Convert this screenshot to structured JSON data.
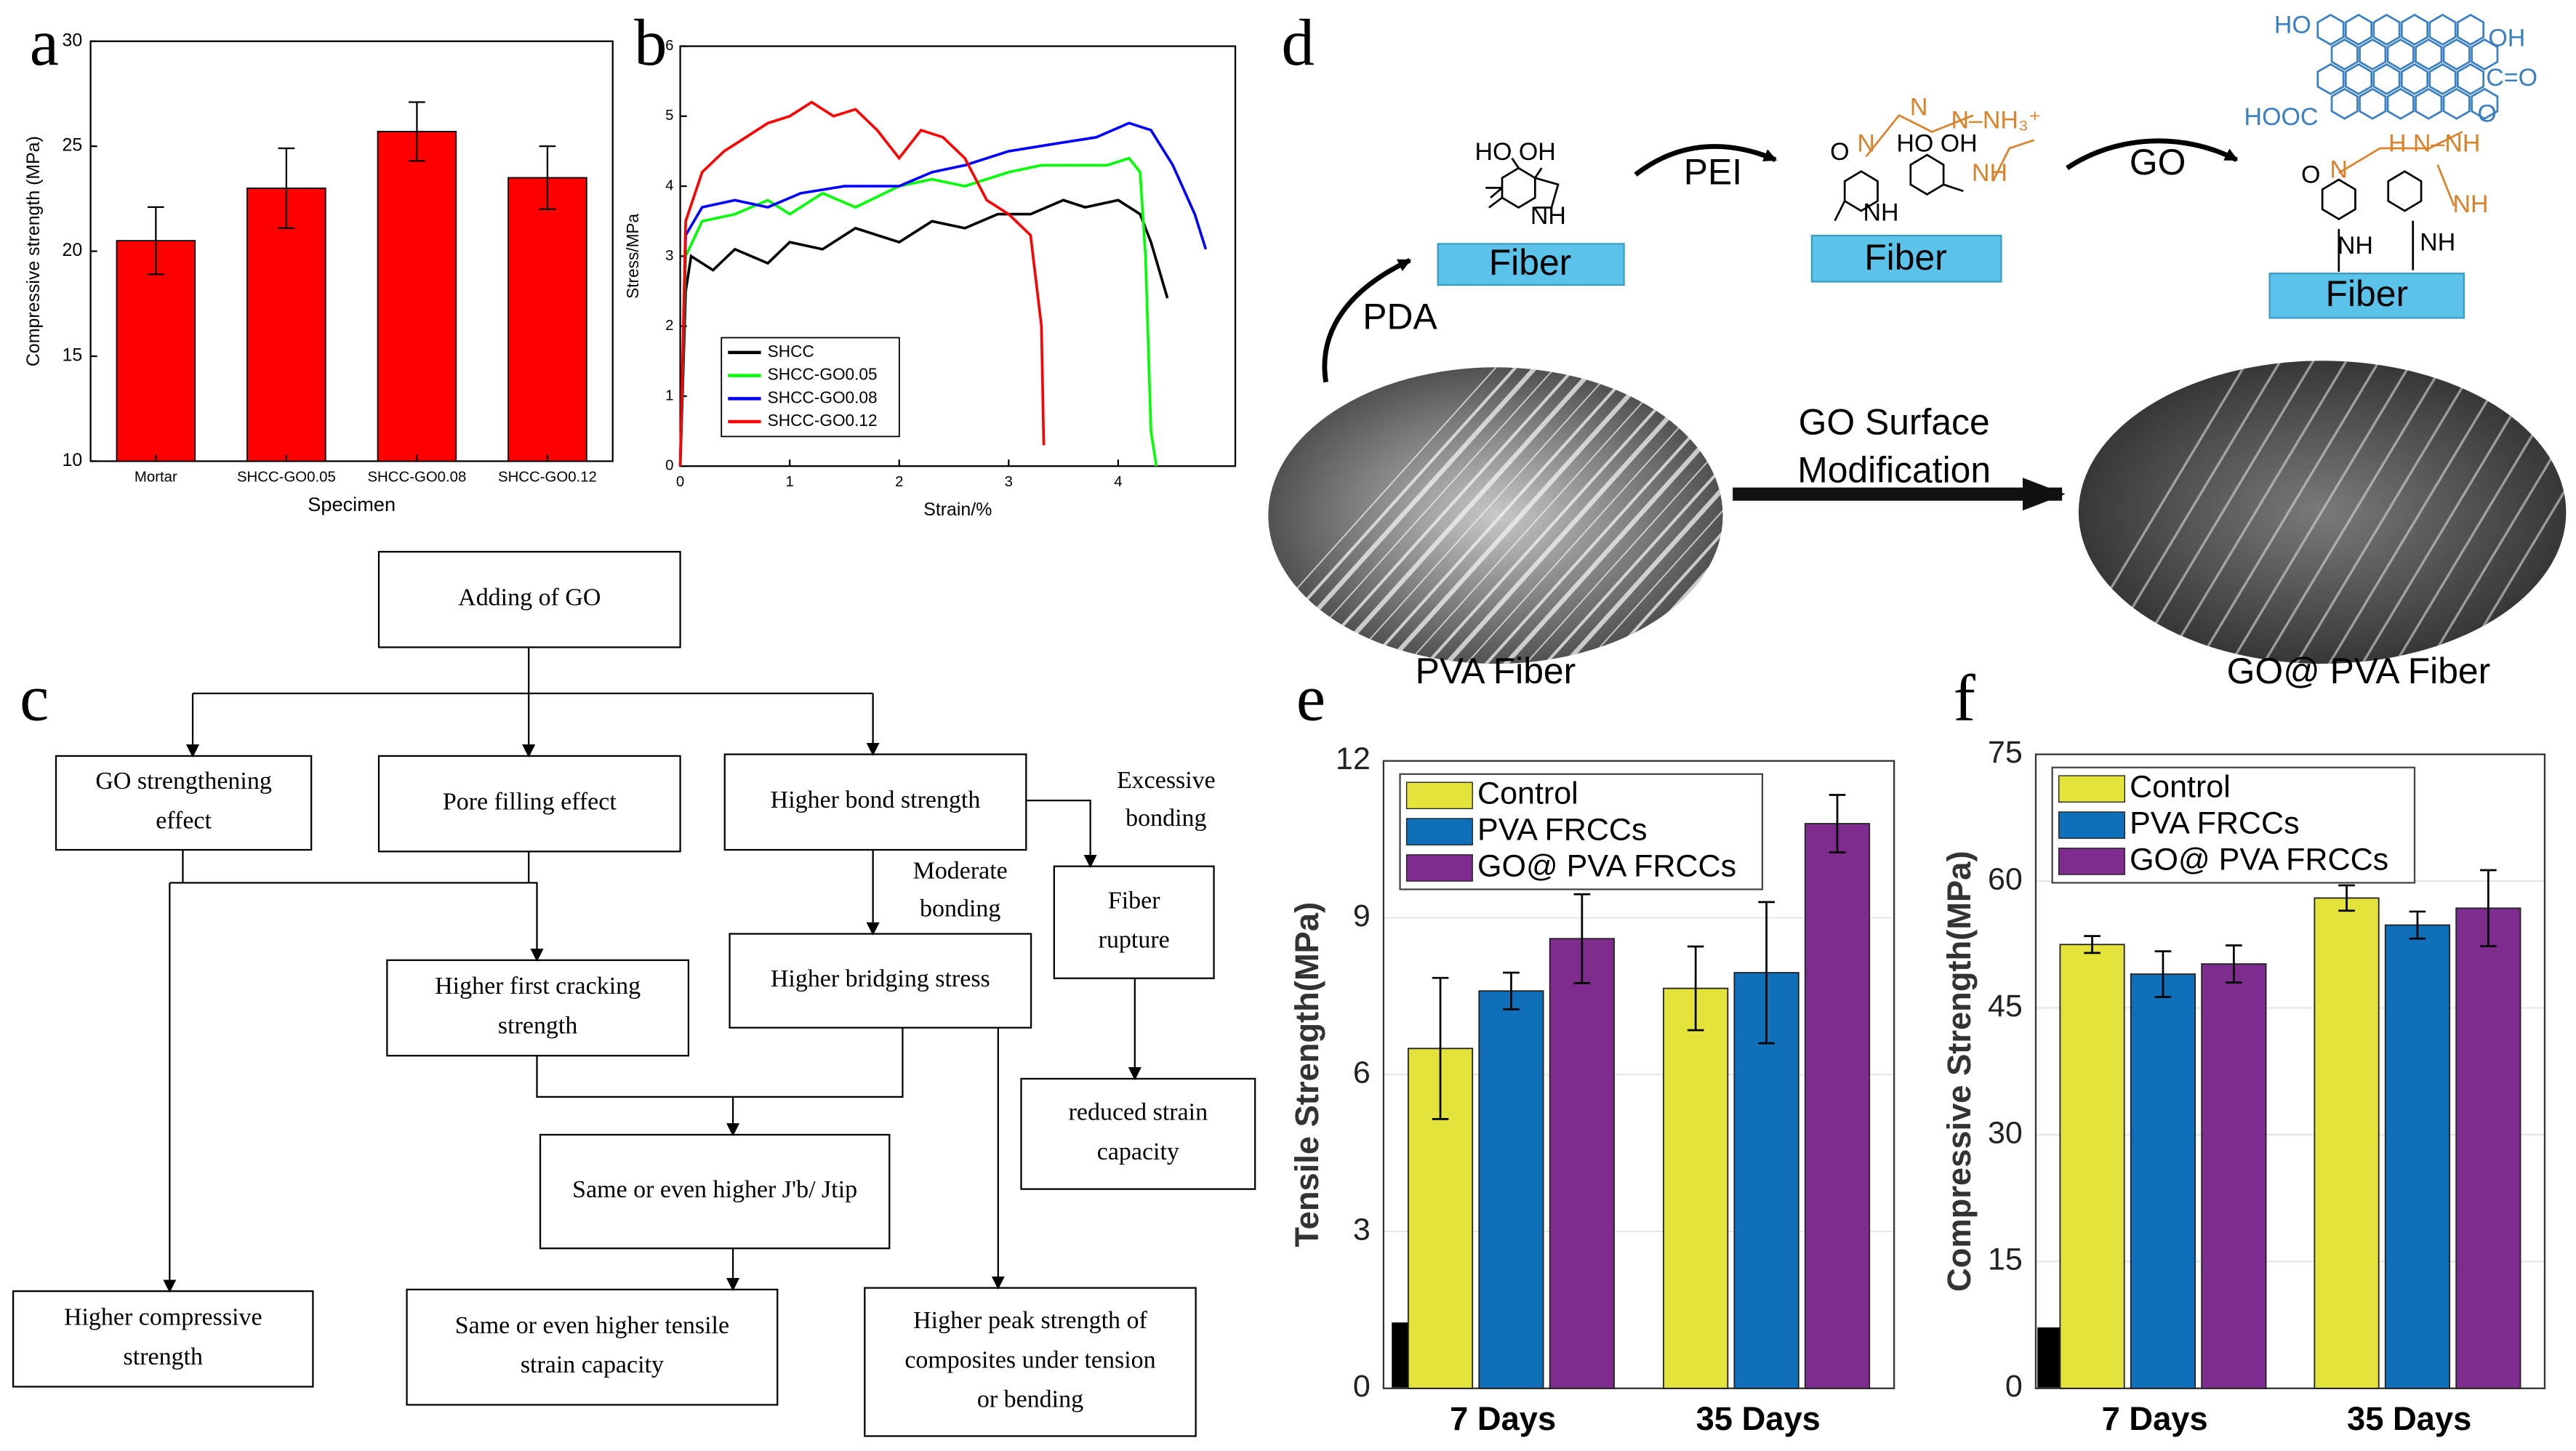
{
  "chart_data": [
    {
      "type": "bar",
      "panel_label": "a",
      "categories": [
        "Mortar",
        "SHCC-GO0.05",
        "SHCC-GO0.08",
        "SHCC-GO0.12"
      ],
      "values": [
        20.5,
        23,
        25.7,
        23.5
      ],
      "errors": [
        1.6,
        1.9,
        1.4,
        1.5
      ],
      "color": "#ff0000",
      "xlabel": "Specimen",
      "ylabel": "Compressive strength (MPa)",
      "ylim": [
        10,
        30
      ],
      "yticks": [
        10,
        15,
        20,
        25,
        30
      ]
    },
    {
      "type": "line",
      "panel_label": "b",
      "xlabel": "Strain/%",
      "ylabel": "Stress/MPa",
      "xlim": [
        0,
        5.07
      ],
      "xticks": [
        0,
        1,
        2,
        3,
        4
      ],
      "ylim": [
        0,
        6
      ],
      "yticks": [
        0,
        1,
        2,
        3,
        4,
        5,
        6
      ],
      "series": [
        {
          "name": "SHCC",
          "color": "#000000",
          "x": [
            0,
            0.05,
            0.1,
            0.3,
            0.5,
            0.8,
            1.0,
            1.3,
            1.6,
            2.0,
            2.3,
            2.6,
            2.9,
            3.2,
            3.5,
            3.7,
            4.0,
            4.2,
            4.3,
            4.45
          ],
          "values": [
            0,
            2.5,
            3.0,
            2.8,
            3.1,
            2.9,
            3.2,
            3.1,
            3.4,
            3.2,
            3.5,
            3.4,
            3.6,
            3.6,
            3.8,
            3.7,
            3.8,
            3.6,
            3.2,
            2.4
          ]
        },
        {
          "name": "SHCC-GO0.05",
          "color": "#00ff00",
          "x": [
            0,
            0.05,
            0.2,
            0.5,
            0.8,
            1.0,
            1.3,
            1.6,
            2.0,
            2.3,
            2.6,
            3.0,
            3.3,
            3.6,
            3.9,
            4.1,
            4.2,
            4.25,
            4.3,
            4.35
          ],
          "values": [
            0,
            3.0,
            3.5,
            3.6,
            3.8,
            3.6,
            3.9,
            3.7,
            4.0,
            4.1,
            4.0,
            4.2,
            4.3,
            4.3,
            4.3,
            4.4,
            4.2,
            3.0,
            0.5,
            0
          ]
        },
        {
          "name": "SHCC-GO0.08",
          "color": "#0000ff",
          "x": [
            0,
            0.05,
            0.2,
            0.5,
            0.8,
            1.1,
            1.5,
            2.0,
            2.3,
            2.6,
            3.0,
            3.4,
            3.8,
            4.1,
            4.3,
            4.5,
            4.7,
            4.8
          ],
          "values": [
            0,
            3.3,
            3.7,
            3.8,
            3.7,
            3.9,
            4.0,
            4.0,
            4.2,
            4.3,
            4.5,
            4.6,
            4.7,
            4.9,
            4.8,
            4.3,
            3.6,
            3.1
          ]
        },
        {
          "name": "SHCC-GO0.12",
          "color": "#ff0000",
          "x": [
            0,
            0.05,
            0.2,
            0.4,
            0.6,
            0.8,
            1.0,
            1.2,
            1.4,
            1.6,
            1.8,
            2.0,
            2.2,
            2.4,
            2.6,
            2.8,
            3.0,
            3.2,
            3.3,
            3.32
          ],
          "values": [
            0,
            3.5,
            4.2,
            4.5,
            4.7,
            4.9,
            5.0,
            5.2,
            5.0,
            5.1,
            4.8,
            4.4,
            4.8,
            4.7,
            4.4,
            3.8,
            3.6,
            3.3,
            2.0,
            0.3
          ]
        }
      ]
    },
    {
      "type": "grouped_bar",
      "panel_label": "e",
      "categories": [
        "7 Days",
        "35 Days"
      ],
      "ylabel": "Tensile Strength(MPa)",
      "ylim": [
        0,
        12
      ],
      "yticks": [
        0,
        3,
        6,
        9,
        12
      ],
      "grid": true,
      "series": [
        {
          "name": "Control",
          "color": "#e3e33c",
          "values": [
            6.5,
            7.65
          ],
          "errors": [
            1.35,
            0.8
          ]
        },
        {
          "name": "PVA FRCCs",
          "color": "#0f6fb8",
          "values": [
            7.6,
            7.95
          ],
          "errors": [
            0.35,
            1.35
          ]
        },
        {
          "name": "GO@ PVA FRCCs",
          "color": "#7e2d8e",
          "values": [
            8.6,
            10.8
          ],
          "errors": [
            0.85,
            0.55
          ]
        }
      ]
    },
    {
      "type": "grouped_bar",
      "panel_label": "f",
      "categories": [
        "7 Days",
        "35 Days"
      ],
      "ylabel": "Compressive Strength(MPa)",
      "ylim": [
        0,
        75
      ],
      "yticks": [
        0,
        15,
        30,
        45,
        60,
        75
      ],
      "grid": true,
      "series": [
        {
          "name": "Control",
          "color": "#e3e33c",
          "values": [
            52.5,
            58
          ],
          "errors": [
            1,
            1.5
          ]
        },
        {
          "name": "PVA FRCCs",
          "color": "#0f6fb8",
          "values": [
            49,
            54.8
          ],
          "errors": [
            2.7,
            1.6
          ]
        },
        {
          "name": "GO@ PVA FRCCs",
          "color": "#7e2d8e",
          "values": [
            50.2,
            56.8
          ],
          "errors": [
            2.2,
            4.5
          ]
        }
      ]
    }
  ],
  "flowchart": {
    "panel_label": "c",
    "nodes": [
      {
        "lines": [
          "Adding of GO"
        ]
      },
      {
        "lines": [
          "GO strengthening",
          "effect"
        ]
      },
      {
        "lines": [
          "Pore filling effect"
        ]
      },
      {
        "lines": [
          "Higher bond strength"
        ]
      },
      {
        "lines": [
          "Higher first cracking",
          "strength"
        ]
      },
      {
        "lines": [
          "Higher bridging stress"
        ]
      },
      {
        "lines": [
          "Fiber",
          "rupture"
        ]
      },
      {
        "lines": [
          "reduced strain",
          "capacity"
        ]
      },
      {
        "lines": [
          "Same or even higher J'b/ Jtip"
        ]
      },
      {
        "lines": [
          "Higher compressive",
          "strength"
        ]
      },
      {
        "lines": [
          "Same or even higher tensile",
          "strain capacity"
        ]
      },
      {
        "lines": [
          "Higher peak strength of",
          "composites under tension",
          "or bending"
        ]
      }
    ],
    "edge_labels": [
      {
        "lines": [
          "Excessive",
          "bonding"
        ]
      },
      {
        "lines": [
          "Moderate",
          "bonding"
        ]
      }
    ]
  },
  "schematic": {
    "panel_label": "d",
    "fiber_labels": [
      "Fiber",
      "Fiber",
      "Fiber"
    ],
    "step_labels": [
      "PDA",
      "PEI",
      "GO"
    ],
    "modification_label": [
      "GO Surface",
      "Modification"
    ],
    "image_captions": [
      "PVA Fiber",
      "GO@ PVA Fiber"
    ],
    "chem_labels": [
      "HO OH",
      "NH",
      "O",
      "N",
      "N",
      "N–NH₃⁺",
      "HO OH",
      "NH",
      "NH",
      "HOOC",
      "HO",
      "OH",
      "C=O",
      "O",
      "O",
      "N",
      "H N–NH",
      "NH",
      "NH",
      "NH"
    ]
  }
}
